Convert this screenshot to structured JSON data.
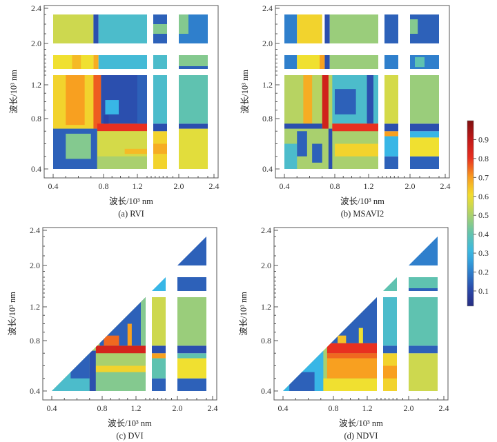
{
  "chart_data": [
    {
      "type": "heatmap",
      "caption": "(a) RVI",
      "xlabel": "波长/10³ nm",
      "ylabel": "波长/10³ nm",
      "xticks": [
        "0.4",
        "0.8",
        "1.2",
        "2.0",
        "2.4"
      ],
      "yticks": [
        "0.4",
        "0.8",
        "1.2",
        "2.0",
        "2.4"
      ],
      "triangle": false,
      "regions": [
        [
          0.4,
          1.3,
          0.4,
          1.3,
          0.55
        ],
        [
          0.4,
          0.75,
          0.72,
          1.3,
          0.62
        ],
        [
          0.5,
          0.65,
          0.75,
          1.3,
          0.7
        ],
        [
          0.72,
          0.78,
          0.72,
          1.3,
          0.76
        ],
        [
          0.75,
          1.3,
          0.7,
          0.76,
          0.8
        ],
        [
          0.78,
          1.3,
          0.76,
          1.3,
          0.12
        ],
        [
          0.82,
          0.98,
          0.85,
          1.02,
          0.3
        ],
        [
          0.8,
          0.86,
          0.76,
          0.84,
          0.1
        ],
        [
          1.2,
          1.3,
          0.76,
          1.3,
          0.15
        ],
        [
          0.4,
          0.75,
          0.4,
          0.72,
          0.15
        ],
        [
          0.5,
          0.7,
          0.48,
          0.68,
          0.45
        ],
        [
          0.75,
          1.3,
          0.4,
          0.7,
          0.56
        ],
        [
          0.75,
          1.3,
          0.4,
          0.5,
          0.5
        ],
        [
          1.05,
          1.3,
          0.52,
          0.56,
          0.66
        ],
        [
          0.4,
          0.72,
          2.0,
          2.3,
          0.55
        ],
        [
          0.72,
          0.76,
          2.0,
          2.3,
          0.12
        ],
        [
          0.76,
          1.3,
          2.0,
          2.3,
          0.35
        ],
        [
          0.4,
          0.72,
          1.45,
          1.8,
          0.6
        ],
        [
          0.55,
          0.62,
          1.45,
          1.8,
          0.66
        ],
        [
          0.72,
          0.76,
          1.45,
          1.8,
          0.68
        ],
        [
          0.76,
          1.3,
          1.45,
          1.8,
          0.33
        ],
        [
          1.45,
          1.8,
          0.4,
          0.7,
          0.62
        ],
        [
          1.45,
          1.8,
          0.52,
          0.6,
          0.68
        ],
        [
          1.45,
          1.8,
          0.7,
          0.76,
          0.12
        ],
        [
          1.45,
          1.8,
          0.76,
          1.3,
          0.35
        ],
        [
          1.45,
          1.8,
          1.45,
          1.8,
          0.35
        ],
        [
          1.45,
          1.8,
          2.0,
          2.3,
          0.15
        ],
        [
          1.45,
          1.8,
          2.1,
          2.2,
          0.45
        ],
        [
          2.0,
          2.3,
          0.4,
          0.72,
          0.58
        ],
        [
          2.0,
          2.3,
          0.72,
          0.76,
          0.12
        ],
        [
          2.0,
          2.3,
          0.76,
          1.3,
          0.4
        ],
        [
          2.0,
          2.3,
          1.45,
          1.8,
          0.45
        ],
        [
          2.0,
          2.3,
          1.45,
          1.52,
          0.15
        ],
        [
          2.0,
          2.3,
          2.0,
          2.3,
          0.2
        ],
        [
          2.0,
          2.1,
          2.1,
          2.3,
          0.45
        ]
      ]
    },
    {
      "type": "heatmap",
      "caption": "(b) MSAVI2",
      "xlabel": "波长/10³ nm",
      "ylabel": "波长/10³ nm",
      "xticks": [
        "0.4",
        "0.8",
        "1.2",
        "2.0",
        "2.4"
      ],
      "yticks": [
        "0.4",
        "0.8",
        "1.2",
        "2.0",
        "2.4"
      ],
      "triangle": false,
      "regions": [
        [
          0.4,
          1.3,
          0.4,
          1.3,
          0.5
        ],
        [
          0.4,
          1.3,
          0.76,
          1.3,
          0.52
        ],
        [
          0.55,
          0.62,
          0.76,
          1.3,
          0.68
        ],
        [
          0.7,
          0.75,
          0.72,
          1.3,
          0.86
        ],
        [
          0.75,
          0.78,
          0.4,
          0.72,
          0.12
        ],
        [
          0.78,
          1.3,
          0.76,
          1.3,
          0.35
        ],
        [
          0.8,
          1.05,
          0.85,
          1.15,
          0.15
        ],
        [
          1.18,
          1.25,
          0.76,
          1.3,
          0.12
        ],
        [
          0.4,
          0.7,
          0.72,
          0.76,
          0.12
        ],
        [
          0.78,
          1.3,
          0.7,
          0.76,
          0.8
        ],
        [
          0.4,
          0.5,
          0.4,
          0.6,
          0.35
        ],
        [
          0.5,
          0.58,
          0.5,
          0.7,
          0.15
        ],
        [
          0.62,
          0.7,
          0.45,
          0.6,
          0.15
        ],
        [
          0.8,
          1.3,
          0.5,
          0.6,
          0.62
        ],
        [
          0.4,
          0.5,
          2.0,
          2.3,
          0.2
        ],
        [
          0.5,
          0.7,
          2.0,
          2.3,
          0.62
        ],
        [
          0.72,
          0.76,
          2.0,
          2.3,
          0.12
        ],
        [
          0.76,
          1.3,
          2.0,
          2.3,
          0.48
        ],
        [
          0.4,
          0.5,
          1.45,
          1.8,
          0.2
        ],
        [
          0.5,
          0.7,
          1.45,
          1.8,
          0.6
        ],
        [
          0.68,
          0.72,
          1.45,
          1.8,
          0.7
        ],
        [
          0.72,
          0.76,
          1.45,
          1.8,
          0.12
        ],
        [
          0.76,
          1.3,
          1.45,
          1.8,
          0.48
        ],
        [
          1.45,
          1.8,
          0.4,
          0.5,
          0.15
        ],
        [
          1.45,
          1.8,
          0.5,
          0.66,
          0.3
        ],
        [
          1.45,
          1.8,
          0.66,
          0.7,
          0.7
        ],
        [
          1.45,
          1.8,
          0.7,
          0.76,
          0.12
        ],
        [
          1.45,
          1.8,
          0.76,
          1.3,
          0.56
        ],
        [
          1.45,
          1.8,
          1.45,
          1.8,
          0.2
        ],
        [
          1.45,
          1.8,
          2.0,
          2.3,
          0.15
        ],
        [
          2.0,
          2.3,
          0.4,
          0.5,
          0.15
        ],
        [
          2.0,
          2.3,
          0.5,
          0.65,
          0.6
        ],
        [
          2.0,
          2.3,
          0.65,
          0.7,
          0.3
        ],
        [
          2.0,
          2.3,
          0.7,
          0.76,
          0.12
        ],
        [
          2.0,
          2.3,
          0.76,
          1.3,
          0.48
        ],
        [
          2.0,
          2.3,
          1.45,
          1.8,
          0.2
        ],
        [
          2.05,
          2.15,
          1.5,
          1.75,
          0.4
        ],
        [
          2.0,
          2.3,
          2.0,
          2.3,
          0.15
        ],
        [
          2.0,
          2.08,
          2.1,
          2.25,
          0.45
        ]
      ]
    },
    {
      "type": "heatmap",
      "caption": "(c) DVI",
      "xlabel": "波长/10³ nm",
      "ylabel": "波长/10³ nm",
      "xticks": [
        "0.4",
        "0.8",
        "1.2",
        "2.0",
        "2.4"
      ],
      "yticks": [
        "0.4",
        "0.8",
        "1.2",
        "2.0",
        "2.4"
      ],
      "triangle": true,
      "regions": [
        [
          0.4,
          1.3,
          0.4,
          1.3,
          0.5
        ],
        [
          0.4,
          0.7,
          0.4,
          0.7,
          0.35
        ],
        [
          0.55,
          0.7,
          0.5,
          0.7,
          0.15
        ],
        [
          0.7,
          0.75,
          0.4,
          0.72,
          0.12
        ],
        [
          0.75,
          1.3,
          0.4,
          0.55,
          0.45
        ],
        [
          0.75,
          1.3,
          0.55,
          0.6,
          0.62
        ],
        [
          0.75,
          1.3,
          0.6,
          0.7,
          0.5
        ],
        [
          0.75,
          1.3,
          0.7,
          0.76,
          0.85
        ],
        [
          0.78,
          1.3,
          0.76,
          1.3,
          0.15
        ],
        [
          0.82,
          1.0,
          0.76,
          0.86,
          0.75
        ],
        [
          1.1,
          1.15,
          0.76,
          1.0,
          0.7
        ],
        [
          1.25,
          1.3,
          0.76,
          1.3,
          0.45
        ],
        [
          1.45,
          1.8,
          0.4,
          0.5,
          0.15
        ],
        [
          1.45,
          1.8,
          0.5,
          0.66,
          0.4
        ],
        [
          1.45,
          1.8,
          0.66,
          0.7,
          0.7
        ],
        [
          1.45,
          1.8,
          0.7,
          0.76,
          0.12
        ],
        [
          1.45,
          1.8,
          0.76,
          1.3,
          0.55
        ],
        [
          1.45,
          1.8,
          1.45,
          1.8,
          0.3
        ],
        [
          2.0,
          2.3,
          0.4,
          0.5,
          0.15
        ],
        [
          2.0,
          2.3,
          0.5,
          0.66,
          0.6
        ],
        [
          2.0,
          2.3,
          0.66,
          0.7,
          0.4
        ],
        [
          2.0,
          2.3,
          0.7,
          0.76,
          0.12
        ],
        [
          2.0,
          2.3,
          0.76,
          1.3,
          0.48
        ],
        [
          2.0,
          2.3,
          1.45,
          1.8,
          0.15
        ],
        [
          2.0,
          2.3,
          2.0,
          2.3,
          0.15
        ]
      ]
    },
    {
      "type": "heatmap",
      "caption": "(d) NDVI",
      "xlabel": "波长/10³ nm",
      "ylabel": "波长/10³ nm",
      "xticks": [
        "0.4",
        "0.8",
        "1.2",
        "2.0",
        "2.4"
      ],
      "yticks": [
        "0.4",
        "0.8",
        "1.2",
        "2.0",
        "2.4"
      ],
      "triangle": true,
      "regions": [
        [
          0.4,
          1.3,
          0.4,
          1.3,
          0.5
        ],
        [
          0.4,
          0.72,
          0.4,
          0.72,
          0.3
        ],
        [
          0.45,
          0.65,
          0.4,
          0.55,
          0.15
        ],
        [
          0.72,
          1.3,
          0.4,
          0.5,
          0.6
        ],
        [
          0.75,
          1.3,
          0.5,
          0.66,
          0.7
        ],
        [
          0.75,
          1.3,
          0.66,
          0.7,
          0.75
        ],
        [
          0.75,
          1.3,
          0.7,
          0.78,
          0.8
        ],
        [
          0.78,
          1.3,
          0.78,
          1.3,
          0.15
        ],
        [
          0.85,
          0.95,
          0.78,
          0.86,
          0.65
        ],
        [
          1.1,
          1.15,
          0.78,
          0.95,
          0.6
        ],
        [
          1.45,
          1.8,
          0.4,
          0.7,
          0.62
        ],
        [
          1.45,
          1.8,
          0.5,
          0.6,
          0.7
        ],
        [
          1.45,
          1.8,
          0.7,
          0.76,
          0.15
        ],
        [
          1.45,
          1.8,
          0.76,
          1.3,
          0.35
        ],
        [
          1.45,
          1.8,
          1.45,
          1.8,
          0.4
        ],
        [
          2.0,
          2.3,
          0.4,
          0.7,
          0.55
        ],
        [
          2.0,
          2.3,
          0.7,
          0.76,
          0.15
        ],
        [
          2.0,
          2.3,
          0.76,
          1.3,
          0.4
        ],
        [
          2.0,
          2.3,
          1.45,
          1.8,
          0.4
        ],
        [
          2.0,
          2.3,
          1.45,
          1.52,
          0.15
        ],
        [
          2.0,
          2.3,
          2.0,
          2.3,
          0.2
        ]
      ]
    }
  ],
  "colorbar": {
    "ticks": [
      "0.1",
      "0.2",
      "0.3",
      "0.4",
      "0.5",
      "0.6",
      "0.7",
      "0.8",
      "0.9"
    ],
    "range": [
      0.02,
      1.0
    ]
  },
  "colors": {
    "colormap": [
      "#262a78",
      "#2a43a6",
      "#2f7fcc",
      "#38b6e6",
      "#5fc2b0",
      "#a9d06e",
      "#f0e030",
      "#f8a020",
      "#e83020",
      "#c01818",
      "#801010"
    ]
  }
}
